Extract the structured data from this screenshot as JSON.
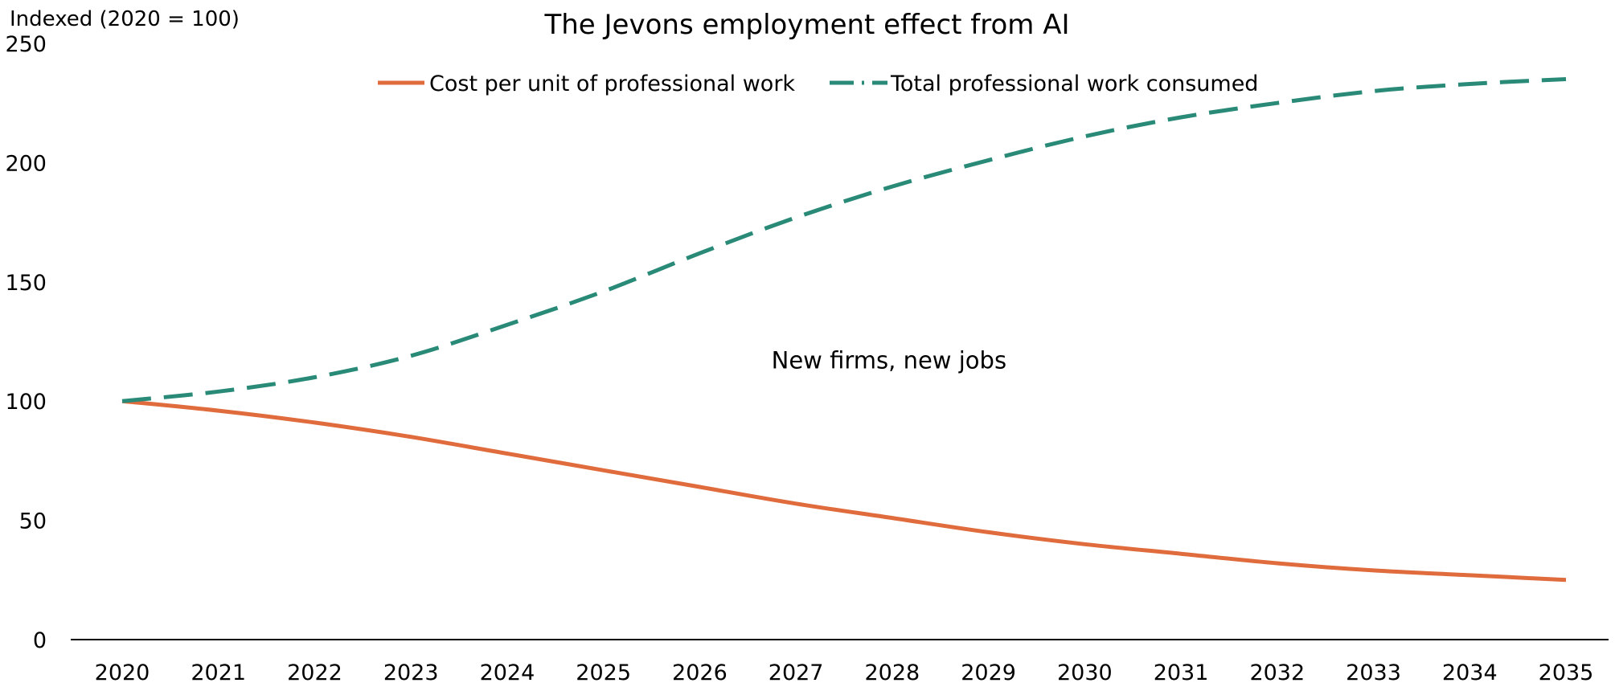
{
  "chart_data": {
    "type": "line",
    "title": "The Jevons employment effect from AI",
    "ylabel": "Indexed (2020 = 100)",
    "xlabel": "",
    "x": [
      "2020",
      "2021",
      "2022",
      "2023",
      "2024",
      "2025",
      "2026",
      "2027",
      "2028",
      "2029",
      "2030",
      "2031",
      "2032",
      "2033",
      "2034",
      "2035"
    ],
    "ylim": [
      0,
      250
    ],
    "yticks": [
      "0",
      "50",
      "100",
      "150",
      "200",
      "250"
    ],
    "grid": false,
    "legend_position": "top-center",
    "series": [
      {
        "name": "Cost per unit of professional work",
        "color": "#E06B3C",
        "style": "solid",
        "values": [
          100,
          96,
          91,
          85,
          78,
          71,
          64,
          57,
          51,
          45,
          40,
          36,
          32,
          29,
          27,
          25
        ]
      },
      {
        "name": "Total professional work consumed",
        "color": "#2A8A78",
        "style": "dashed",
        "values": [
          100,
          104,
          110,
          119,
          132,
          146,
          162,
          177,
          190,
          201,
          211,
          219,
          225,
          230,
          233,
          235
        ]
      }
    ],
    "annotations": [
      {
        "text": "New firms, new jobs",
        "x": "2028",
        "y": 117
      }
    ]
  }
}
